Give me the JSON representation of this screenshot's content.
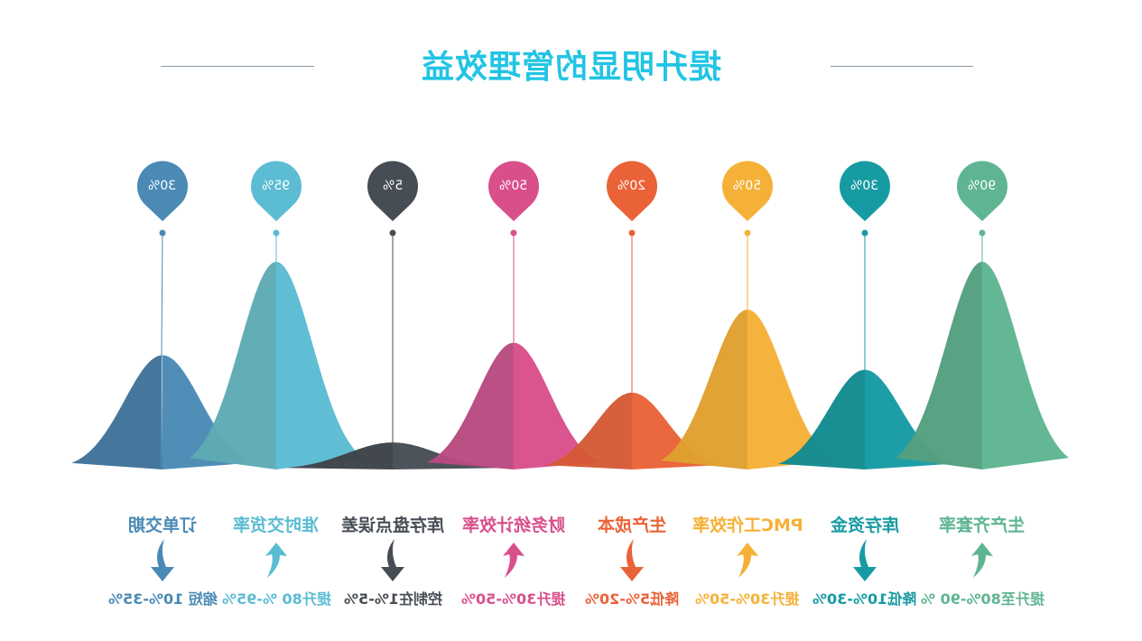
{
  "title": "提升明显的管理效益",
  "items": [
    {
      "value": "30%",
      "label": "订单交期",
      "detail": "缩短 10%-35%",
      "direction": "down",
      "color": "#4a8ab5",
      "dark": "#3f7399",
      "level": 0.55
    },
    {
      "value": "95%",
      "label": "准时交货率",
      "detail": "提升80 %-95%",
      "direction": "up",
      "color": "#5bbcd3",
      "dark": "#5eabb4",
      "level": 1.0
    },
    {
      "value": "5%",
      "label": "库存盘点误差",
      "detail": "控制在1%-5%",
      "direction": "down",
      "color": "#474d55",
      "dark": "#3d4249",
      "level": 0.13
    },
    {
      "value": "50%",
      "label": "财务统计效率",
      "detail": "提升30%-50%",
      "direction": "up",
      "color": "#d94f8c",
      "dark": "#b84a80",
      "level": 0.61
    },
    {
      "value": "20%",
      "label": "生产成本",
      "detail": "降低5%-20%",
      "direction": "down",
      "color": "#ea6238",
      "dark": "#d55a36",
      "level": 0.37
    },
    {
      "value": "50%",
      "label": "PMC工作效率",
      "detail": "提升30%-50%",
      "direction": "up",
      "color": "#f5b137",
      "dark": "#e0a030",
      "level": 0.77
    },
    {
      "value": "30%",
      "label": "库存资金",
      "detail": "降低10%-30%",
      "direction": "down",
      "color": "#169ba3",
      "dark": "#128a90",
      "level": 0.48
    },
    {
      "value": "90%",
      "label": "生产齐套率",
      "detail": "提升至80%-90 %",
      "direction": "up",
      "color": "#5fb592",
      "dark": "#549f80",
      "level": 1.0
    }
  ]
}
